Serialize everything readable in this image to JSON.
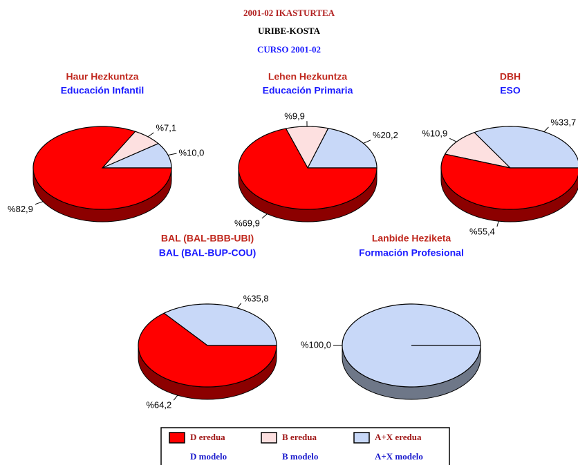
{
  "titles": [
    "2001-02 IKASTURTEA",
    "URIBE-KOSTA",
    "CURSO 2001-02"
  ],
  "legend": {
    "items": [
      [
        "D eredua",
        "D modelo"
      ],
      [
        "B eredua",
        "B modelo"
      ],
      [
        "A+X eredua",
        "A+X modelo"
      ]
    ],
    "colors": [
      "#ff0000",
      "#fde0e0",
      "#c8d8f8"
    ]
  },
  "chart_data": [
    {
      "type": "pie",
      "title": "Haur Hezkuntza",
      "subtitle": "Educación Infantil",
      "values": [
        10.0,
        7.1,
        82.9
      ],
      "value_labels": [
        "%10,0",
        "%7,1",
        "%82,9"
      ],
      "colors": [
        "#c8d8f8",
        "#fde0e0",
        "#ff0000"
      ]
    },
    {
      "type": "pie",
      "title": "Lehen Hezkuntza",
      "subtitle": "Educación Primaria",
      "values": [
        20.2,
        9.9,
        69.9
      ],
      "value_labels": [
        "%20,2",
        "%9,9",
        "%69,9"
      ],
      "colors": [
        "#c8d8f8",
        "#fde0e0",
        "#ff0000"
      ]
    },
    {
      "type": "pie",
      "title": "DBH",
      "subtitle": "ESO",
      "values": [
        33.7,
        10.9,
        55.4
      ],
      "value_labels": [
        "%33,7",
        "%10,9",
        "%55,4"
      ],
      "colors": [
        "#c8d8f8",
        "#fde0e0",
        "#ff0000"
      ]
    },
    {
      "type": "pie",
      "title": "BAL (BAL-BBB-UBI)",
      "subtitle": "BAL (BAL-BUP-COU)",
      "values": [
        35.8,
        64.2
      ],
      "value_labels": [
        "%35,8",
        "%64,2"
      ],
      "colors": [
        "#c8d8f8",
        "#ff0000"
      ]
    },
    {
      "type": "pie",
      "title": "Lanbide Heziketa",
      "subtitle": "Formación Profesional",
      "values": [
        100.0
      ],
      "value_labels": [
        "%100,0"
      ],
      "colors": [
        "#c8d8f8"
      ]
    }
  ]
}
